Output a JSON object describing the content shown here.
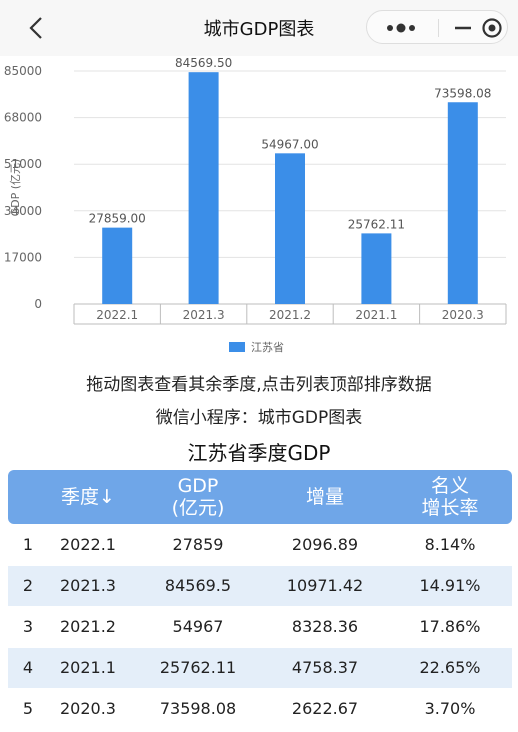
{
  "nav": {
    "title": "城市GDP图表"
  },
  "chart_data": {
    "type": "bar",
    "categories": [
      "2022.1",
      "2021.3",
      "2021.2",
      "2021.1",
      "2020.3"
    ],
    "series": [
      {
        "name": "江苏省",
        "values": [
          27859.0,
          84569.5,
          54967.0,
          25762.11,
          73598.08
        ]
      }
    ],
    "value_labels": [
      "27859.00",
      "84569.50",
      "54967.00",
      "25762.11",
      "73598.08"
    ],
    "ylabel": "GDP (亿元)",
    "yticks": [
      "0",
      "17000",
      "34000",
      "51000",
      "68000",
      "85000"
    ],
    "ylim": [
      0,
      85000
    ],
    "color": "#3b8ee8",
    "grid": true,
    "legend": "bottom-center"
  },
  "captions": {
    "line1": "拖动图表查看其余季度,点击列表顶部排序数据",
    "line2": "微信小程序：城市GDP图表"
  },
  "table": {
    "title": "江苏省季度GDP",
    "headers": [
      [
        "季度↓"
      ],
      [
        "GDP",
        "(亿元)"
      ],
      [
        "增量"
      ],
      [
        "名义",
        "增长率"
      ]
    ],
    "rows": [
      [
        "1",
        "2022.1",
        "27859",
        "2096.89",
        "8.14%"
      ],
      [
        "2",
        "2021.3",
        "84569.5",
        "10971.42",
        "14.91%"
      ],
      [
        "3",
        "2021.2",
        "54967",
        "8328.36",
        "17.86%"
      ],
      [
        "4",
        "2021.1",
        "25762.11",
        "4758.37",
        "22.65%"
      ],
      [
        "5",
        "2020.3",
        "73598.08",
        "2622.67",
        "3.70%"
      ]
    ]
  }
}
